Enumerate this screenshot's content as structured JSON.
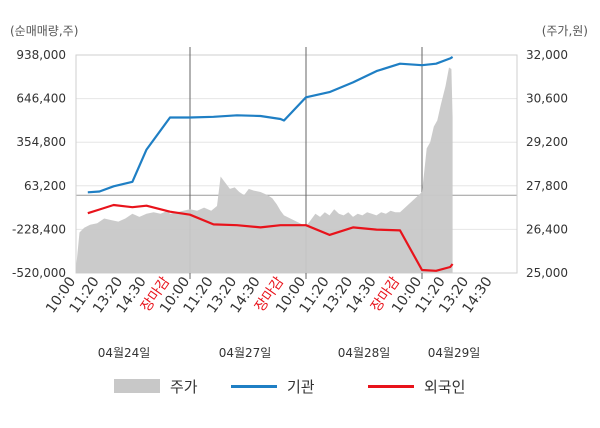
{
  "units": {
    "left": "(순매매량,주)",
    "right": "(주가,원)"
  },
  "colors": {
    "price_area": "#c8c8c8",
    "institution": "#1f7fc4",
    "foreign": "#e8131b",
    "market_close": "#e8131b",
    "grid": "#e6e6e6",
    "axis": "#999999",
    "tick_text": "#333333"
  },
  "legend": [
    {
      "label": "주가",
      "kind": "area",
      "color": "#c8c8c8"
    },
    {
      "label": "기관",
      "kind": "line",
      "color": "#1f7fc4"
    },
    {
      "label": "외국인",
      "kind": "line",
      "color": "#e8131b"
    }
  ],
  "chart_data": {
    "type": "line",
    "grid": true,
    "legend_position": "bottom",
    "y_left": {
      "label": "(순매매량,주)",
      "ylim": [
        -520000,
        938000
      ],
      "ticks": [
        938000,
        646400,
        354800,
        63200,
        -228400,
        -520000
      ],
      "tick_labels": [
        "938,000",
        "646,400",
        "354,800",
        "63,200",
        "-228,400",
        "-520,000"
      ]
    },
    "y_right": {
      "label": "(주가,원)",
      "ylim": [
        25000,
        32000
      ],
      "ticks": [
        32000,
        30600,
        29200,
        27800,
        26400,
        25000
      ],
      "tick_labels": [
        "32,000",
        "30,600",
        "29,200",
        "27,800",
        "26,400",
        "25,000"
      ]
    },
    "x_ticks": [
      {
        "label": "10:00",
        "day": 0,
        "slot": 0,
        "kind": "time"
      },
      {
        "label": "11:20",
        "day": 0,
        "slot": 1,
        "kind": "time"
      },
      {
        "label": "13:20",
        "day": 0,
        "slot": 2,
        "kind": "time"
      },
      {
        "label": "14:30",
        "day": 0,
        "slot": 3,
        "kind": "time"
      },
      {
        "label": "장마감",
        "day": 0,
        "slot": 4,
        "kind": "close"
      },
      {
        "label": "10:00",
        "day": 1,
        "slot": 0,
        "kind": "time"
      },
      {
        "label": "11:20",
        "day": 1,
        "slot": 1,
        "kind": "time"
      },
      {
        "label": "13:20",
        "day": 1,
        "slot": 2,
        "kind": "time"
      },
      {
        "label": "14:30",
        "day": 1,
        "slot": 3,
        "kind": "time"
      },
      {
        "label": "장마감",
        "day": 1,
        "slot": 4,
        "kind": "close"
      },
      {
        "label": "10:00",
        "day": 2,
        "slot": 0,
        "kind": "time"
      },
      {
        "label": "11:20",
        "day": 2,
        "slot": 1,
        "kind": "time"
      },
      {
        "label": "13:20",
        "day": 2,
        "slot": 2,
        "kind": "time"
      },
      {
        "label": "14:30",
        "day": 2,
        "slot": 3,
        "kind": "time"
      },
      {
        "label": "장마감",
        "day": 2,
        "slot": 4,
        "kind": "close"
      },
      {
        "label": "10:00",
        "day": 3,
        "slot": 0,
        "kind": "time"
      },
      {
        "label": "11:20",
        "day": 3,
        "slot": 1,
        "kind": "time"
      },
      {
        "label": "13:20",
        "day": 3,
        "slot": 2,
        "kind": "time"
      },
      {
        "label": "14:30",
        "day": 3,
        "slot": 3,
        "kind": "time"
      }
    ],
    "dates": [
      "04월24일",
      "04월27일",
      "04월28일",
      "04월29일"
    ],
    "series": [
      {
        "name": "주가",
        "kind": "area",
        "axis": "right",
        "points": [
          [
            0,
            0.0,
            25150
          ],
          [
            0,
            0.15,
            26300
          ],
          [
            0,
            0.35,
            26450
          ],
          [
            0,
            0.6,
            26550
          ],
          [
            0,
            0.9,
            26600
          ],
          [
            0,
            1.2,
            26750
          ],
          [
            0,
            1.5,
            26700
          ],
          [
            0,
            1.8,
            26650
          ],
          [
            0,
            2.1,
            26750
          ],
          [
            0,
            2.4,
            26900
          ],
          [
            0,
            2.7,
            26800
          ],
          [
            0,
            3.0,
            26900
          ],
          [
            0,
            3.3,
            26950
          ],
          [
            0,
            3.6,
            26900
          ],
          [
            0,
            3.9,
            27000
          ],
          [
            0,
            4.0,
            26900
          ],
          [
            1,
            0.0,
            27050
          ],
          [
            1,
            0.3,
            27000
          ],
          [
            1,
            0.6,
            27100
          ],
          [
            1,
            0.9,
            27000
          ],
          [
            1,
            1.15,
            27150
          ],
          [
            1,
            1.3,
            28100
          ],
          [
            1,
            1.5,
            27900
          ],
          [
            1,
            1.7,
            27700
          ],
          [
            1,
            1.9,
            27750
          ],
          [
            1,
            2.1,
            27600
          ],
          [
            1,
            2.3,
            27500
          ],
          [
            1,
            2.5,
            27700
          ],
          [
            1,
            2.7,
            27650
          ],
          [
            1,
            3.0,
            27600
          ],
          [
            1,
            3.3,
            27500
          ],
          [
            1,
            3.5,
            27400
          ],
          [
            1,
            3.7,
            27200
          ],
          [
            1,
            3.85,
            27000
          ],
          [
            1,
            4.0,
            26850
          ],
          [
            2,
            0.0,
            26500
          ],
          [
            2,
            0.2,
            26700
          ],
          [
            2,
            0.4,
            26900
          ],
          [
            2,
            0.6,
            26800
          ],
          [
            2,
            0.8,
            26950
          ],
          [
            2,
            1.0,
            26850
          ],
          [
            2,
            1.2,
            27050
          ],
          [
            2,
            1.4,
            26900
          ],
          [
            2,
            1.6,
            26850
          ],
          [
            2,
            1.8,
            26950
          ],
          [
            2,
            2.0,
            26800
          ],
          [
            2,
            2.2,
            26900
          ],
          [
            2,
            2.4,
            26850
          ],
          [
            2,
            2.6,
            26950
          ],
          [
            2,
            2.8,
            26900
          ],
          [
            2,
            3.0,
            26850
          ],
          [
            2,
            3.2,
            26950
          ],
          [
            2,
            3.4,
            26900
          ],
          [
            2,
            3.6,
            27000
          ],
          [
            2,
            3.8,
            26950
          ],
          [
            2,
            4.0,
            26950
          ],
          [
            3,
            0.0,
            27600
          ],
          [
            3,
            0.1,
            28300
          ],
          [
            3,
            0.2,
            29000
          ],
          [
            3,
            0.35,
            29200
          ],
          [
            3,
            0.5,
            29700
          ],
          [
            3,
            0.65,
            29900
          ],
          [
            3,
            0.8,
            30400
          ],
          [
            3,
            1.0,
            31000
          ],
          [
            3,
            1.15,
            31600
          ],
          [
            3,
            1.25,
            31550
          ],
          [
            3,
            1.3,
            30000
          ]
        ]
      },
      {
        "name": "기관",
        "kind": "line",
        "axis": "left",
        "points": [
          [
            0,
            0.5,
            20000
          ],
          [
            0,
            1.0,
            25000
          ],
          [
            0,
            1.6,
            60000
          ],
          [
            0,
            2.4,
            90000
          ],
          [
            0,
            3.0,
            305000
          ],
          [
            0,
            4.0,
            520000
          ],
          [
            1,
            0.0,
            520000
          ],
          [
            1,
            1.0,
            525000
          ],
          [
            1,
            2.0,
            535000
          ],
          [
            1,
            3.0,
            530000
          ],
          [
            1,
            3.85,
            510000
          ],
          [
            1,
            4.0,
            500000
          ],
          [
            2,
            0.0,
            655000
          ],
          [
            2,
            1.0,
            690000
          ],
          [
            2,
            2.0,
            755000
          ],
          [
            2,
            3.0,
            830000
          ],
          [
            2,
            4.0,
            880000
          ],
          [
            3,
            0.0,
            870000
          ],
          [
            3,
            0.6,
            880000
          ],
          [
            3,
            1.2,
            915000
          ],
          [
            3,
            1.3,
            925000
          ]
        ]
      },
      {
        "name": "외국인",
        "kind": "line",
        "axis": "left",
        "points": [
          [
            0,
            0.5,
            -120000
          ],
          [
            0,
            1.0,
            -95000
          ],
          [
            0,
            1.6,
            -65000
          ],
          [
            0,
            2.4,
            -80000
          ],
          [
            0,
            3.0,
            -70000
          ],
          [
            0,
            4.0,
            -110000
          ],
          [
            1,
            0.0,
            -130000
          ],
          [
            1,
            1.0,
            -195000
          ],
          [
            1,
            2.0,
            -200000
          ],
          [
            1,
            3.0,
            -215000
          ],
          [
            1,
            3.85,
            -200000
          ],
          [
            1,
            4.0,
            -200000
          ],
          [
            2,
            0.0,
            -200000
          ],
          [
            2,
            1.0,
            -265000
          ],
          [
            2,
            2.0,
            -215000
          ],
          [
            2,
            3.0,
            -230000
          ],
          [
            2,
            4.0,
            -235000
          ],
          [
            3,
            0.0,
            -500000
          ],
          [
            3,
            0.6,
            -505000
          ],
          [
            3,
            1.2,
            -480000
          ],
          [
            3,
            1.3,
            -460000
          ]
        ]
      }
    ]
  }
}
